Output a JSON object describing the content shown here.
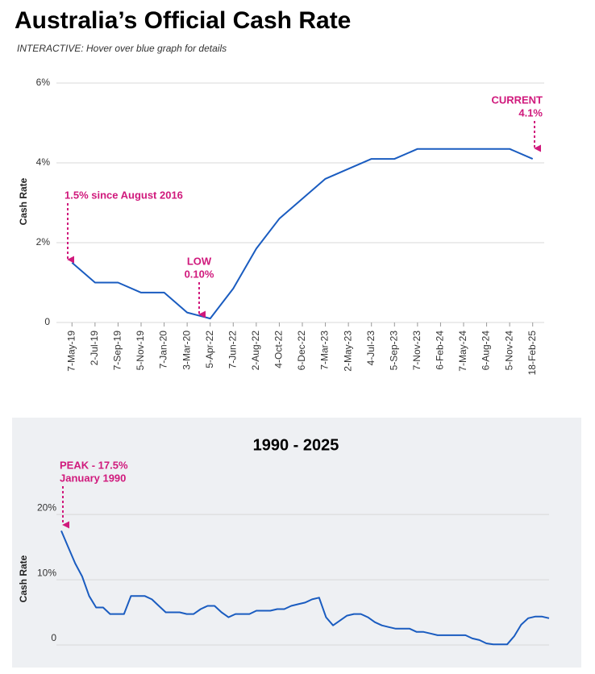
{
  "title": "Australia’s Official Cash Rate",
  "subtitle": "INTERACTIVE: Hover over blue graph for details",
  "chart_data": [
    {
      "type": "line",
      "ylabel": "Cash Rate",
      "color": "#1a5cc0",
      "annotation_color": "#d0197c",
      "grid": true,
      "categories": [
        "7-May-19",
        "2-Jul-19",
        "7-Sep-19",
        "5-Nov-19",
        "7-Jan-20",
        "3-Mar-20",
        "5-Apr-22",
        "7-Jun-22",
        "2-Aug-22",
        "4-Oct-22",
        "6-Dec-22",
        "7-Mar-23",
        "2-May-23",
        "4-Jul-23",
        "5-Sep-23",
        "7-Nov-23",
        "6-Feb-24",
        "7-May-24",
        "6-Aug-24",
        "5-Nov-24",
        "18-Feb-25"
      ],
      "values": [
        1.5,
        1.0,
        1.0,
        0.75,
        0.75,
        0.25,
        0.1,
        0.85,
        1.85,
        2.6,
        3.1,
        3.6,
        3.85,
        4.1,
        4.1,
        4.35,
        4.35,
        4.35,
        4.35,
        4.35,
        4.1
      ],
      "ylim": [
        0,
        6
      ],
      "yticks": [
        0,
        {
          "value": 2,
          "label": "2%"
        },
        {
          "value": 4,
          "label": "4%"
        },
        {
          "value": 6,
          "label": "6%"
        }
      ],
      "annotations": [
        [
          "1.5% since August 2016"
        ],
        [
          "LOW",
          "0.10%"
        ],
        [
          "CURRENT",
          "4.1%"
        ]
      ]
    },
    {
      "type": "line",
      "title": "1990 - 2025",
      "ylabel": "Cash Rate",
      "color": "#1a5cc0",
      "annotation_color": "#d0197c",
      "grid": true,
      "values": [
        17.5,
        15,
        12.5,
        10.5,
        7.5,
        5.75,
        5.75,
        4.75,
        4.75,
        4.75,
        7.5,
        7.5,
        7.5,
        7.0,
        6.0,
        5.0,
        5.0,
        5.0,
        4.75,
        4.75,
        5.5,
        6.0,
        6.0,
        5.0,
        4.25,
        4.75,
        4.75,
        4.75,
        5.25,
        5.25,
        5.25,
        5.5,
        5.5,
        6.0,
        6.25,
        6.5,
        7.0,
        7.25,
        4.25,
        3.0,
        3.75,
        4.5,
        4.75,
        4.75,
        4.25,
        3.5,
        3.0,
        2.75,
        2.5,
        2.5,
        2.5,
        2.0,
        2.0,
        1.75,
        1.5,
        1.5,
        1.5,
        1.5,
        1.5,
        1.0,
        0.75,
        0.25,
        0.1,
        0.1,
        0.1,
        1.35,
        3.1,
        4.1,
        4.35,
        4.35,
        4.1
      ],
      "ylim": [
        0,
        22
      ],
      "yticks": [
        0,
        {
          "value": 10,
          "label": "10%"
        },
        {
          "value": 20,
          "label": "20%"
        }
      ],
      "annotations": [
        [
          "PEAK - 17.5%",
          "January 1990"
        ]
      ]
    }
  ]
}
